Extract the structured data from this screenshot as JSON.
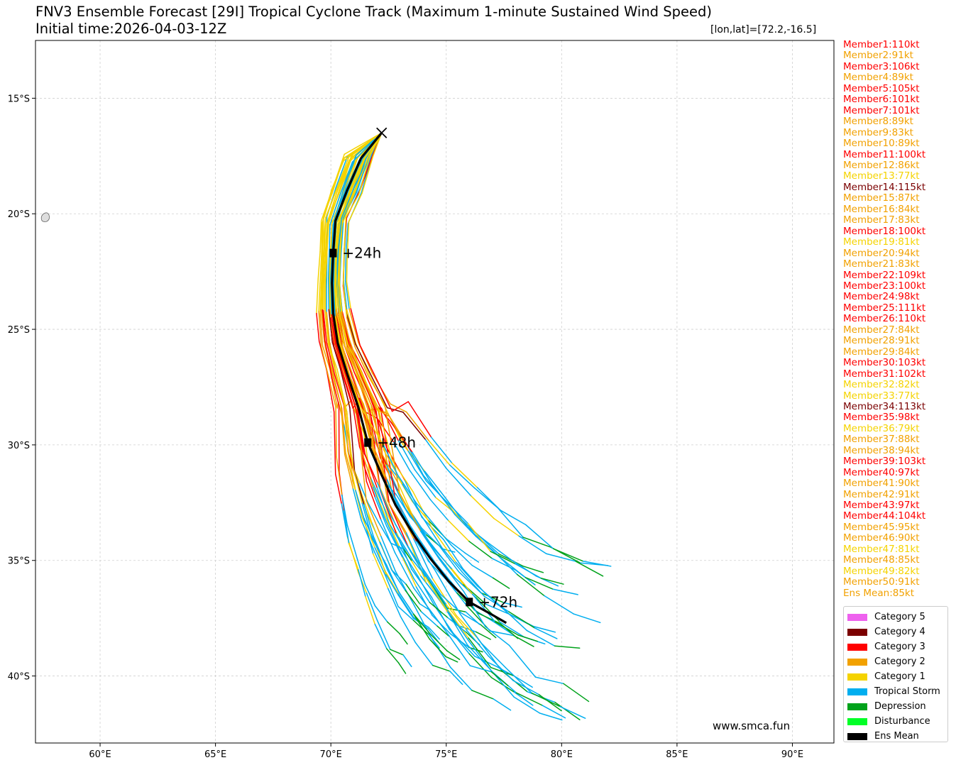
{
  "title_line1": "FNV3 Ensemble Forecast [29I] Tropical Cyclone Track (Maximum 1-minute Sustained Wind Speed)",
  "title_line2": "Initial time:2026-04-03-12Z",
  "position_readout": "[lon,lat]=[72.2,-16.5]",
  "watermark": "www.smca.fun",
  "colors": {
    "cat5": "#ee61ee",
    "cat4": "#7b0000",
    "cat3": "#ff0000",
    "cat2": "#f2a100",
    "cat1": "#f5d300",
    "ts": "#00aeef",
    "depression": "#00a21b",
    "disturbance": "#00ff27",
    "mean": "#000000"
  },
  "members": [
    {
      "label": "Member1:110kt",
      "color": "#ff0000"
    },
    {
      "label": "Member2:91kt",
      "color": "#f2a100"
    },
    {
      "label": "Member3:106kt",
      "color": "#ff0000"
    },
    {
      "label": "Member4:89kt",
      "color": "#f2a100"
    },
    {
      "label": "Member5:105kt",
      "color": "#ff0000"
    },
    {
      "label": "Member6:101kt",
      "color": "#ff0000"
    },
    {
      "label": "Member7:101kt",
      "color": "#ff0000"
    },
    {
      "label": "Member8:89kt",
      "color": "#f2a100"
    },
    {
      "label": "Member9:83kt",
      "color": "#f2a100"
    },
    {
      "label": "Member10:89kt",
      "color": "#f2a100"
    },
    {
      "label": "Member11:100kt",
      "color": "#ff0000"
    },
    {
      "label": "Member12:86kt",
      "color": "#f2a100"
    },
    {
      "label": "Member13:77kt",
      "color": "#f5d300"
    },
    {
      "label": "Member14:115kt",
      "color": "#7b0000"
    },
    {
      "label": "Member15:87kt",
      "color": "#f2a100"
    },
    {
      "label": "Member16:84kt",
      "color": "#f2a100"
    },
    {
      "label": "Member17:83kt",
      "color": "#f2a100"
    },
    {
      "label": "Member18:100kt",
      "color": "#ff0000"
    },
    {
      "label": "Member19:81kt",
      "color": "#f5d300"
    },
    {
      "label": "Member20:94kt",
      "color": "#f2a100"
    },
    {
      "label": "Member21:83kt",
      "color": "#f2a100"
    },
    {
      "label": "Member22:109kt",
      "color": "#ff0000"
    },
    {
      "label": "Member23:100kt",
      "color": "#ff0000"
    },
    {
      "label": "Member24:98kt",
      "color": "#ff0000"
    },
    {
      "label": "Member25:111kt",
      "color": "#ff0000"
    },
    {
      "label": "Member26:110kt",
      "color": "#ff0000"
    },
    {
      "label": "Member27:84kt",
      "color": "#f2a100"
    },
    {
      "label": "Member28:91kt",
      "color": "#f2a100"
    },
    {
      "label": "Member29:84kt",
      "color": "#f2a100"
    },
    {
      "label": "Member30:103kt",
      "color": "#ff0000"
    },
    {
      "label": "Member31:102kt",
      "color": "#ff0000"
    },
    {
      "label": "Member32:82kt",
      "color": "#f5d300"
    },
    {
      "label": "Member33:77kt",
      "color": "#f5d300"
    },
    {
      "label": "Member34:113kt",
      "color": "#7b0000"
    },
    {
      "label": "Member35:98kt",
      "color": "#ff0000"
    },
    {
      "label": "Member36:79kt",
      "color": "#f5d300"
    },
    {
      "label": "Member37:88kt",
      "color": "#f2a100"
    },
    {
      "label": "Member38:94kt",
      "color": "#f2a100"
    },
    {
      "label": "Member39:103kt",
      "color": "#ff0000"
    },
    {
      "label": "Member40:97kt",
      "color": "#ff0000"
    },
    {
      "label": "Member41:90kt",
      "color": "#f2a100"
    },
    {
      "label": "Member42:91kt",
      "color": "#f2a100"
    },
    {
      "label": "Member43:97kt",
      "color": "#ff0000"
    },
    {
      "label": "Member44:104kt",
      "color": "#ff0000"
    },
    {
      "label": "Member45:95kt",
      "color": "#f2a100"
    },
    {
      "label": "Member46:90kt",
      "color": "#f2a100"
    },
    {
      "label": "Member47:81kt",
      "color": "#f5d300"
    },
    {
      "label": "Member48:85kt",
      "color": "#f2a100"
    },
    {
      "label": "Member49:82kt",
      "color": "#f5d300"
    },
    {
      "label": "Member50:91kt",
      "color": "#f2a100"
    },
    {
      "label": "Ens Mean:85kt",
      "color": "#f2a100"
    }
  ],
  "legend": [
    {
      "label": "Category 5",
      "color": "#ee61ee"
    },
    {
      "label": "Category 4",
      "color": "#7b0000"
    },
    {
      "label": "Category 3",
      "color": "#ff0000"
    },
    {
      "label": "Category 2",
      "color": "#f2a100"
    },
    {
      "label": "Category 1",
      "color": "#f5d300"
    },
    {
      "label": "Tropical Storm",
      "color": "#00aeef"
    },
    {
      "label": "Depression",
      "color": "#00a21b"
    },
    {
      "label": "Disturbance",
      "color": "#00ff27"
    },
    {
      "label": "Ens Mean",
      "color": "#000000"
    }
  ],
  "chart_data": {
    "type": "scatter",
    "xlim": [
      57.2,
      91.8
    ],
    "ylim": [
      -42.9,
      -12.5
    ],
    "grid": true,
    "x_ticks": [
      60,
      65,
      70,
      75,
      80,
      85,
      90
    ],
    "x_tick_labels": [
      "60°E",
      "65°E",
      "70°E",
      "75°E",
      "80°E",
      "85°E",
      "90°E"
    ],
    "y_ticks": [
      -15,
      -20,
      -25,
      -30,
      -35,
      -40
    ],
    "y_tick_labels": [
      "15°S",
      "20°S",
      "25°S",
      "30°S",
      "35°S",
      "40°S"
    ],
    "initial_position": [
      72.2,
      -16.5
    ],
    "ensemble_mean": {
      "name": "Ens Mean",
      "lon": [
        72.2,
        71.3,
        70.7,
        70.2,
        70.1,
        70.05,
        70.1,
        70.3,
        70.7,
        71.2,
        71.6,
        72.2,
        72.8,
        73.6,
        74.3,
        75.1,
        76.0,
        76.9,
        77.6
      ],
      "lat": [
        -16.5,
        -17.6,
        -19.0,
        -20.3,
        -21.7,
        -23.0,
        -24.3,
        -25.6,
        -26.9,
        -28.4,
        -29.9,
        -31.3,
        -32.6,
        -33.9,
        -34.9,
        -35.9,
        -36.8,
        -37.3,
        -37.7
      ],
      "markers": [
        {
          "label": "+24h",
          "lon": 70.1,
          "lat": -21.7
        },
        {
          "label": "+48h",
          "lon": 71.6,
          "lat": -29.9
        },
        {
          "label": "+72h",
          "lon": 76.0,
          "lat": -36.8
        }
      ]
    },
    "ensemble_spread": {
      "count": 50,
      "stages": [
        {
          "lat": -16.5,
          "min": 0,
          "max": 0
        },
        {
          "lat": -17.6,
          "min": -0.8,
          "max": 0.5
        },
        {
          "lat": -19.0,
          "min": -0.7,
          "max": 0.6
        },
        {
          "lat": -20.3,
          "min": -0.6,
          "max": 0.5
        },
        {
          "lat": -21.7,
          "min": -0.5,
          "max": 0.5
        },
        {
          "lat": -23.0,
          "min": -0.5,
          "max": 0.5
        },
        {
          "lat": -24.3,
          "min": -0.6,
          "max": 0.6
        },
        {
          "lat": -25.6,
          "min": -0.7,
          "max": 0.8
        },
        {
          "lat": -26.9,
          "min": -0.8,
          "max": 1.0
        },
        {
          "lat": -28.4,
          "min": -1.0,
          "max": 1.3
        },
        {
          "lat": -29.9,
          "min": -1.4,
          "max": 1.6
        },
        {
          "lat": -31.3,
          "min": -1.8,
          "max": 2.0
        },
        {
          "lat": -32.6,
          "min": -2.2,
          "max": 2.3
        },
        {
          "lat": -33.9,
          "min": -2.6,
          "max": 2.6
        },
        {
          "lat": -34.9,
          "min": -3.0,
          "max": 2.9
        },
        {
          "lat": -35.9,
          "min": -3.4,
          "max": 3.2
        },
        {
          "lat": -36.8,
          "min": -3.8,
          "max": 3.5
        },
        {
          "lat": -37.3,
          "min": -4.2,
          "max": 3.9
        },
        {
          "lat": -37.7,
          "min": -4.6,
          "max": 4.4
        }
      ]
    }
  }
}
